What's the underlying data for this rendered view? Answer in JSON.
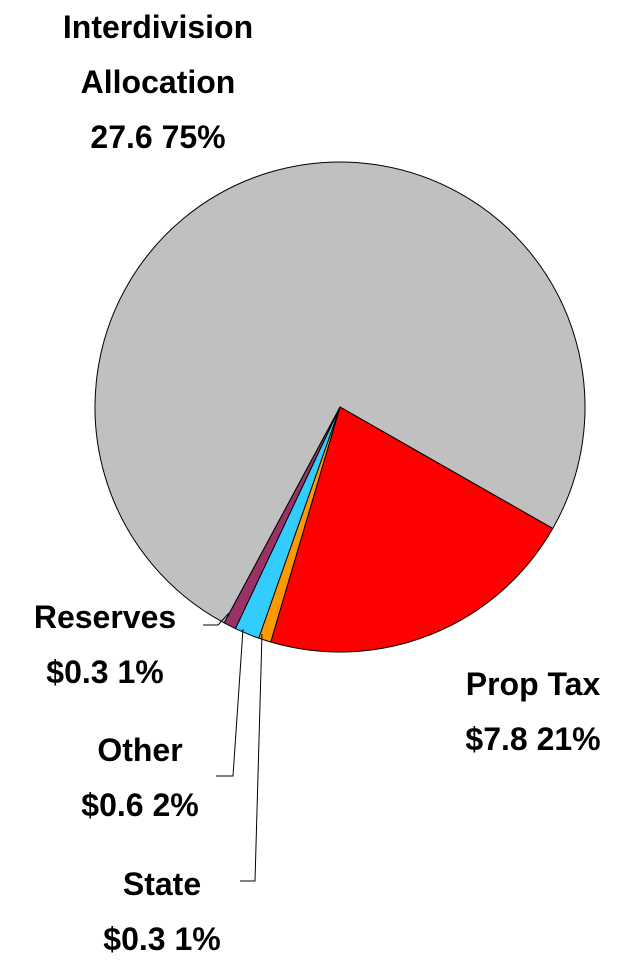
{
  "chart_data": {
    "type": "pie",
    "categories": [
      "Prop Tax",
      "State",
      "Other",
      "Reserves",
      "Interdivision Allocation"
    ],
    "values": [
      7.8,
      0.3,
      0.6,
      0.3,
      27.6
    ],
    "value_labels": [
      "$7.8 21%",
      "$0.3 1%",
      "$0.6 2%",
      "$0.3 1%",
      "27.6 75%"
    ],
    "colors": [
      "#ff0000",
      "#ff9900",
      "#33ccff",
      "#993366",
      "#c0c0c0"
    ]
  }
}
